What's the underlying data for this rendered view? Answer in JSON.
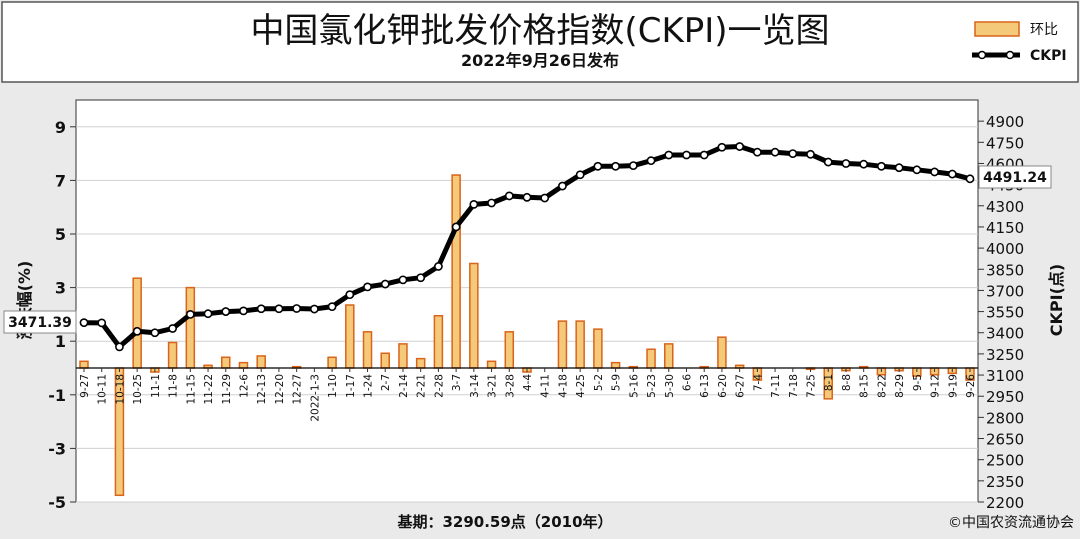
{
  "title": "中国氯化钾批发价格指数(CKPI)一览图",
  "subtitle": "2022年9月26日发布",
  "footer": {
    "base": "基期：3290.59点（2010年）",
    "credit": "©中国农资流通协会"
  },
  "legend": {
    "bar": "环比",
    "line": "CKPI"
  },
  "colors": {
    "bar_fill": "#f5c97a",
    "bar_edge": "#d9641a",
    "line": "#000000",
    "background": "#eaeaea"
  },
  "chart_data": {
    "type": "bar",
    "ylabel": "涨跌幅(%)",
    "y2label": "CKPI(点)",
    "ylim": [
      -5,
      10
    ],
    "y2lim": [
      2200,
      5050
    ],
    "yticks": [
      -5,
      -3,
      -1,
      1,
      3,
      5,
      7,
      9
    ],
    "y2ticks": [
      2200,
      2350,
      2500,
      2650,
      2800,
      2950,
      3100,
      3250,
      3400,
      3550,
      3700,
      3850,
      4000,
      4150,
      4300,
      4450,
      4600,
      4750,
      4900
    ],
    "tick_labels": [
      "9-27",
      "10-11",
      "10-18",
      "10-25",
      "11-1",
      "11-8",
      "11-15",
      "11-22",
      "11-29",
      "12-6",
      "12-13",
      "12-20",
      "12-27",
      "2022-1-3",
      "1-10",
      "1-17",
      "1-24",
      "2-7",
      "2-14",
      "2-21",
      "2-28",
      "3-7",
      "3-14",
      "3-21",
      "3-28",
      "4-4",
      "4-11",
      "4-18",
      "4-25",
      "5-2",
      "5-9",
      "5-16",
      "5-23",
      "5-30",
      "6-6",
      "6-13",
      "6-20",
      "6-27",
      "7-4",
      "7-11",
      "7-18",
      "7-25",
      "8-1",
      "8-8",
      "8-15",
      "8-22",
      "8-29",
      "9-5",
      "9-12",
      "9-19",
      "9-26"
    ],
    "series": [
      {
        "name": "环比",
        "type": "bar",
        "values": [
          0.25,
          0.0,
          -4.75,
          3.35,
          -0.15,
          0.95,
          3.0,
          0.1,
          0.4,
          0.2,
          0.45,
          0.0,
          0.05,
          0.0,
          0.4,
          2.35,
          1.35,
          0.55,
          0.9,
          0.35,
          1.95,
          7.2,
          3.9,
          0.25,
          1.35,
          -0.15,
          0.0,
          1.75,
          1.75,
          1.45,
          0.2,
          0.05,
          0.7,
          0.9,
          0.0,
          0.05,
          1.15,
          0.1,
          -0.45,
          0.0,
          0.0,
          -0.05,
          -1.15,
          -0.1,
          0.05,
          -0.25,
          -0.1,
          -0.3,
          -0.25,
          -0.2,
          -0.45
        ]
      },
      {
        "name": "CKPI",
        "type": "line",
        "values": [
          3471.39,
          3470,
          3300,
          3410,
          3400,
          3430,
          3530,
          3535,
          3550,
          3555,
          3570,
          3570,
          3572,
          3568,
          3585,
          3670,
          3725,
          3745,
          3775,
          3790,
          3870,
          4150,
          4310,
          4320,
          4370,
          4360,
          4355,
          4440,
          4520,
          4580,
          4580,
          4585,
          4620,
          4660,
          4660,
          4660,
          4715,
          4720,
          4680,
          4680,
          4670,
          4665,
          4610,
          4600,
          4595,
          4580,
          4570,
          4555,
          4540,
          4525,
          4491.24
        ]
      }
    ],
    "annotations": {
      "first": "3471.39",
      "last": "4491.24"
    }
  }
}
